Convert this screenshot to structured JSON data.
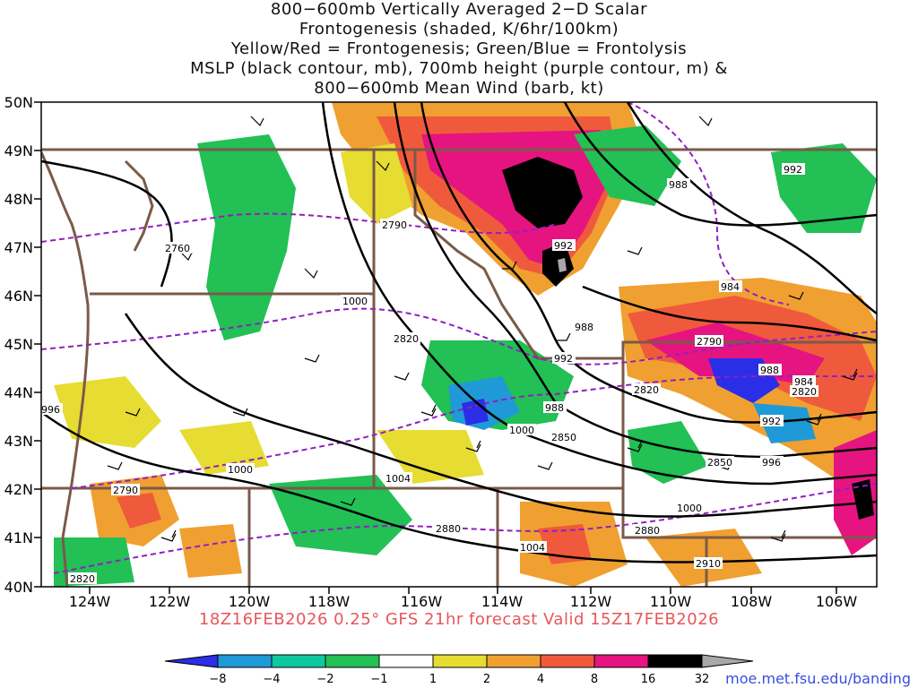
{
  "titles": [
    "800−600mb Vertically Averaged 2−D Scalar",
    "Frontogenesis (shaded, K/6hr/100km)",
    "Yellow/Red = Frontogenesis;  Green/Blue = Frontolysis",
    "MSLP (black contour, mb), 700mb height (purple contour, m) &",
    "800−600mb Mean Wind (barb, kt)"
  ],
  "footer": "18Z16FEB2026 0.25° GFS 21hr forecast Valid 15Z17FEB2026",
  "credit": "moe.met.fsu.edu/banding",
  "lat_labels": [
    "50N",
    "49N",
    "48N",
    "47N",
    "46N",
    "45N",
    "44N",
    "43N",
    "42N",
    "41N",
    "40N"
  ],
  "lon_labels": [
    "124W",
    "122W",
    "120W",
    "118W",
    "116W",
    "114W",
    "112W",
    "110W",
    "108W",
    "106W"
  ],
  "colorbar": {
    "labels": [
      "−8",
      "−4",
      "−2",
      "−1",
      "1",
      "2",
      "4",
      "8",
      "16",
      "32"
    ],
    "colors": [
      "#2a2ee6",
      "#1f9ad6",
      "#10c8a0",
      "#22c055",
      "#2cd62c",
      "#ffffff",
      "#e6dc32",
      "#f0a030",
      "#f05a3c",
      "#e61480",
      "#000000",
      "#a8a8a8"
    ]
  },
  "colors": {
    "mslp_contour": "#000000",
    "height_contour": "#9020c0",
    "border": "#7a5a48"
  },
  "mslp_labels": [
    "992",
    "988",
    "992",
    "984",
    "988",
    "1000",
    "992",
    "988",
    "984",
    "996",
    "1000",
    "992",
    "988",
    "992",
    "996",
    "1004",
    "1000",
    "1000",
    "1004"
  ],
  "height_labels": [
    "2760",
    "2790",
    "2820",
    "2790",
    "2820",
    "2850",
    "2850",
    "2790",
    "2880",
    "2820",
    "2880",
    "2910",
    "2820"
  ]
}
